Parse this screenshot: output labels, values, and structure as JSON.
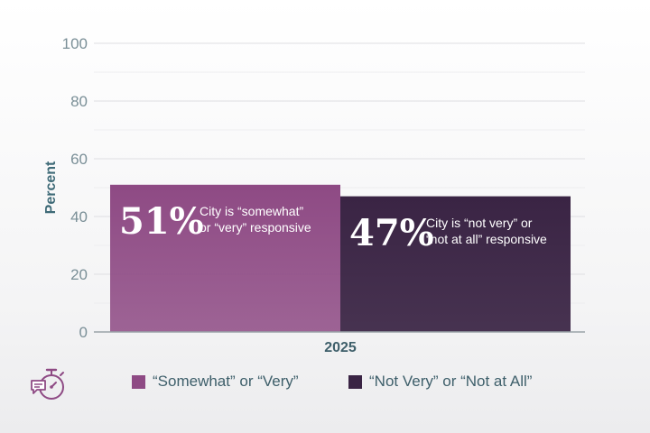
{
  "chart_data": {
    "type": "bar",
    "ylabel": "Percent",
    "xlabel": "",
    "ylim": [
      0,
      100
    ],
    "yticks": [
      0,
      20,
      40,
      60,
      80,
      100
    ],
    "grid": true,
    "categories": [
      "2025"
    ],
    "series": [
      {
        "name": "“Somewhat” or “Very”",
        "values": [
          51
        ],
        "color": "#8e4a84",
        "label_pct": "51%",
        "label_line1": "City is “somewhat”",
        "label_line2": "or “very” responsive"
      },
      {
        "name": "“Not Very” or “Not at All”",
        "values": [
          47
        ],
        "color": "#3a2444",
        "label_pct": "47%",
        "label_line1": "City is “not very” or",
        "label_line2": "“not at all” responsive"
      }
    ],
    "legend_position": "bottom"
  },
  "icons": {
    "timer": "stopwatch-chat-icon"
  },
  "colors": {
    "axis_text": "#7a8f97",
    "ylabel": "#3e6a77",
    "grid": "#e3e3e6"
  }
}
